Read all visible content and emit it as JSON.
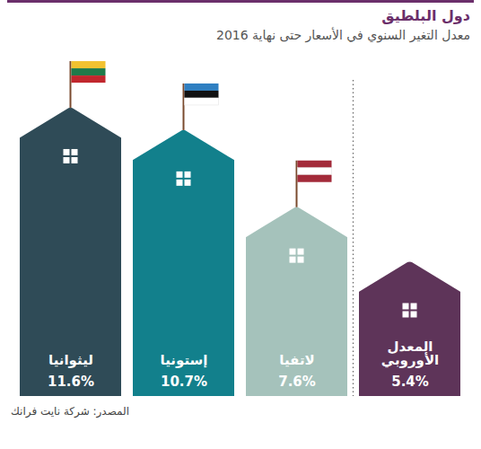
{
  "chart_data": {
    "type": "bar",
    "title": "دول البلطيق",
    "subtitle": "معدل التغير السنوي في الأسعار حتى نهاية 2016",
    "caption": "المصدر: شركة نايت فرانك",
    "categories": [
      "ليثوانيا",
      "إستونيا",
      "لاتفيا",
      "المعدل الأوروبي"
    ],
    "values": [
      11.6,
      10.7,
      7.6,
      5.4
    ],
    "value_labels": [
      "11.6%",
      "10.7%",
      "7.6%",
      "5.4%"
    ],
    "colors": [
      "#2f4b57",
      "#12808c",
      "#a5c2bb",
      "#5e3459"
    ],
    "ylim": [
      0,
      12
    ],
    "yticks": [],
    "tick_labels": false,
    "data_labels": true
  }
}
